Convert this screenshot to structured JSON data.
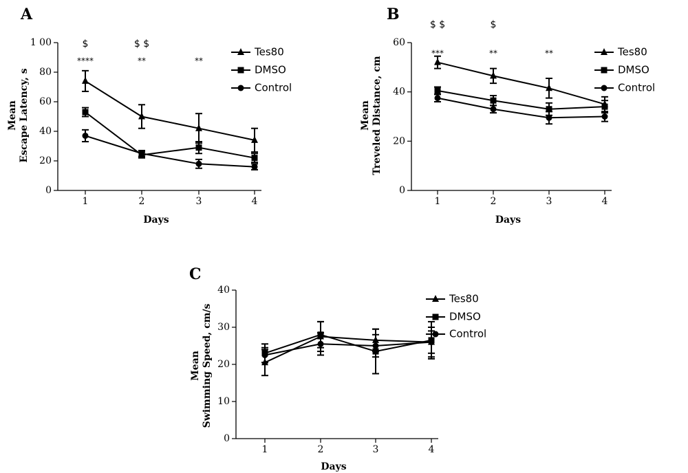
{
  "chart_data": [
    {
      "type": "line",
      "panel": "A",
      "xlabel": "Days",
      "ylabel": [
        "Mean",
        "Escape Latency, s"
      ],
      "x": [
        1,
        2,
        3,
        4
      ],
      "xticks": [
        "1",
        "2",
        "3",
        "4"
      ],
      "ylim": [
        0,
        100
      ],
      "yticks": [
        "0",
        "20",
        "40",
        "60",
        "80",
        "1 00"
      ],
      "grid": false,
      "legend_position": "top-right",
      "series": [
        {
          "name": "Tes80",
          "marker": "triangle",
          "values": [
            74,
            50,
            42,
            34
          ],
          "errors": [
            7,
            8,
            10,
            8
          ]
        },
        {
          "name": "DMSO",
          "marker": "square",
          "values": [
            53,
            24,
            29,
            22
          ],
          "errors": [
            3,
            2,
            4,
            3
          ]
        },
        {
          "name": "Control",
          "marker": "circle",
          "values": [
            37,
            25,
            18,
            16
          ],
          "errors": [
            4,
            2,
            3,
            2
          ]
        }
      ],
      "annotations": [
        {
          "x": 1,
          "text": "$",
          "kind": "dollar",
          "row": 0
        },
        {
          "x": 1,
          "text": "****",
          "kind": "star",
          "row": 1
        },
        {
          "x": 2,
          "text": "$ $",
          "kind": "dollar",
          "row": 0
        },
        {
          "x": 2,
          "text": "**",
          "kind": "star",
          "row": 1
        },
        {
          "x": 3,
          "text": "**",
          "kind": "star",
          "row": 1
        }
      ]
    },
    {
      "type": "line",
      "panel": "B",
      "xlabel": "Days",
      "ylabel": [
        "Mean",
        "Treveled Distance, cm"
      ],
      "x": [
        1,
        2,
        3,
        4
      ],
      "xticks": [
        "1",
        "2",
        "3",
        "4"
      ],
      "ylim": [
        0,
        60
      ],
      "yticks": [
        "0",
        "20",
        "40",
        "60"
      ],
      "grid": false,
      "legend_position": "top-right",
      "series": [
        {
          "name": "Tes80",
          "marker": "triangle",
          "values": [
            52,
            46.5,
            41.5,
            35
          ],
          "errors": [
            2.5,
            3,
            4,
            3
          ]
        },
        {
          "name": "DMSO",
          "marker": "square",
          "values": [
            40.5,
            36.5,
            33,
            34
          ],
          "errors": [
            1.5,
            2,
            2.5,
            2.5
          ]
        },
        {
          "name": "Control",
          "marker": "circle",
          "values": [
            37.5,
            33,
            29.5,
            30
          ],
          "errors": [
            1.5,
            1.5,
            2.5,
            2
          ]
        }
      ],
      "annotations": [
        {
          "x": 1,
          "text": "$ $",
          "kind": "dollar",
          "row": 0
        },
        {
          "x": 1,
          "text": "***",
          "kind": "star",
          "row": 1
        },
        {
          "x": 2,
          "text": "$",
          "kind": "dollar",
          "row": 0
        },
        {
          "x": 2,
          "text": "**",
          "kind": "star",
          "row": 1
        },
        {
          "x": 3,
          "text": "**",
          "kind": "star",
          "row": 1
        }
      ]
    },
    {
      "type": "line",
      "panel": "C",
      "xlabel": "Days",
      "ylabel": [
        "Mean",
        "Swimming Speed, cm/s"
      ],
      "x": [
        1,
        2,
        3,
        4
      ],
      "xticks": [
        "1",
        "2",
        "3",
        "4"
      ],
      "ylim": [
        0,
        40
      ],
      "yticks": [
        "0",
        "10",
        "20",
        "30",
        "40"
      ],
      "grid": false,
      "legend_position": "top-right",
      "series": [
        {
          "name": "Tes80",
          "marker": "triangle",
          "values": [
            20.5,
            27.5,
            26.5,
            26
          ],
          "errors": [
            3.5,
            4,
            3,
            4
          ]
        },
        {
          "name": "DMSO",
          "marker": "square",
          "values": [
            23,
            28,
            23.5,
            26.5
          ],
          "errors": [
            2.5,
            3.5,
            6,
            5
          ]
        },
        {
          "name": "Control",
          "marker": "circle",
          "values": [
            22.5,
            25.5,
            25,
            26
          ],
          "errors": [
            2,
            3,
            3,
            3
          ]
        }
      ],
      "annotations": []
    }
  ]
}
